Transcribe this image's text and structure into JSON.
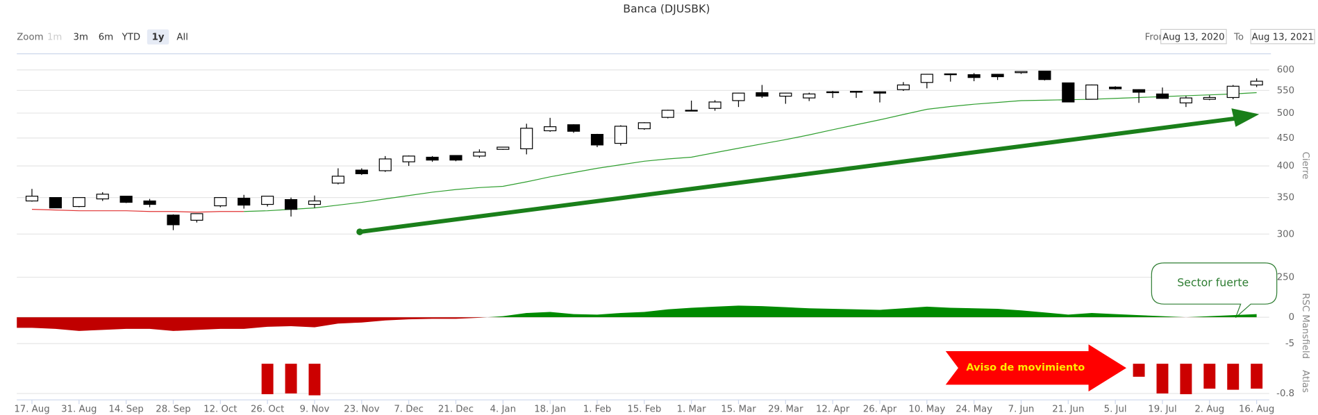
{
  "title": "Banca (DJUSBK)",
  "zoom": {
    "label": "Zoom",
    "buttons": [
      "1m",
      "3m",
      "6m",
      "YTD",
      "1y",
      "All"
    ],
    "selected": "1y",
    "disabled": [
      "1m"
    ]
  },
  "range": {
    "from_label": "From",
    "from": "Aug 13, 2020",
    "to_label": "To",
    "to": "Aug 13, 2021"
  },
  "annotations": {
    "sector": "Sector fuerte",
    "aviso": "Aviso de movimiento"
  },
  "chart_data": [
    {
      "type": "candlestick",
      "y_label": "Cierre",
      "log_scale": true,
      "grid": true,
      "categories": [
        "17. Aug",
        null,
        "31. Aug",
        null,
        "14. Sep",
        null,
        "28. Sep",
        null,
        "12. Oct",
        null,
        "26. Oct",
        null,
        "9. Nov",
        null,
        "23. Nov",
        null,
        "7. Dec",
        null,
        "21. Dec",
        null,
        "4. Jan",
        null,
        "18. Jan",
        null,
        "1. Feb",
        null,
        "15. Feb",
        null,
        "1. Mar",
        null,
        "15. Mar",
        null,
        "29. Mar",
        null,
        "12. Apr",
        null,
        "26. Apr",
        null,
        "10. May",
        null,
        "24. May",
        null,
        "7. Jun",
        null,
        "21. Jun",
        null,
        "5. Jul",
        null,
        "19. Jul",
        null,
        "2. Aug",
        null,
        "16. Aug"
      ],
      "open": [
        345,
        350,
        337,
        348,
        352,
        345,
        325,
        318,
        338,
        349,
        340,
        347,
        340,
        372,
        393,
        392,
        407,
        415,
        418,
        417,
        429,
        430,
        464,
        476,
        457,
        440,
        468,
        491,
        505,
        510,
        527,
        545,
        537,
        533,
        545,
        547,
        547,
        552,
        569,
        588,
        588,
        589,
        593,
        597,
        568,
        530,
        558,
        552,
        542,
        522,
        530,
        534,
        563
      ],
      "high": [
        363,
        350,
        350,
        358,
        352,
        348,
        326,
        327,
        350,
        354,
        352,
        350,
        353,
        396,
        396,
        417,
        418,
        417,
        418,
        429,
        433,
        478,
        490,
        477,
        458,
        475,
        481,
        507,
        527,
        528,
        545,
        563,
        545,
        545,
        549,
        549,
        548,
        570,
        590,
        591,
        592,
        590,
        596,
        597,
        568,
        564,
        560,
        553,
        557,
        537,
        539,
        563,
        579
      ],
      "low": [
        344,
        335,
        336,
        345,
        342,
        336,
        305,
        315,
        336,
        334,
        337,
        323,
        335,
        370,
        385,
        390,
        400,
        407,
        408,
        414,
        428,
        420,
        462,
        460,
        433,
        436,
        466,
        489,
        504,
        505,
        513,
        533,
        520,
        526,
        533,
        533,
        523,
        549,
        555,
        571,
        572,
        575,
        590,
        574,
        524,
        530,
        552,
        522,
        531,
        513,
        528,
        530,
        558
      ],
      "close": [
        352,
        335,
        350,
        355,
        343,
        340,
        312,
        327,
        350,
        339,
        352,
        333,
        345,
        383,
        387,
        412,
        417,
        410,
        410,
        424,
        433,
        469,
        472,
        463,
        437,
        473,
        480,
        506,
        506,
        524,
        544,
        537,
        544,
        542,
        547,
        548,
        544,
        563,
        589,
        590,
        581,
        583,
        596,
        576,
        524,
        563,
        554,
        546,
        532,
        533,
        534,
        560,
        572
      ],
      "up_color": "#ffffff",
      "down_color": "#000000",
      "series": [
        {
          "color": "#e03030",
          "values": [
            333,
            332,
            331,
            331,
            331,
            330,
            330,
            329,
            330,
            330,
            null,
            null,
            null,
            null,
            null,
            null,
            null,
            null,
            null,
            null,
            null,
            null,
            null,
            null,
            null,
            null,
            null,
            null,
            null,
            null,
            null,
            null,
            null,
            null,
            null,
            null,
            null,
            null,
            null,
            null,
            null,
            null,
            null,
            null,
            null,
            null,
            null,
            null,
            null,
            null,
            null,
            null,
            null
          ]
        },
        {
          "color": "#2e9e2e",
          "values": [
            null,
            null,
            null,
            null,
            null,
            null,
            null,
            null,
            null,
            330,
            331,
            333,
            335,
            339,
            343,
            348,
            353,
            358,
            362,
            365,
            367,
            374,
            382,
            389,
            396,
            402,
            408,
            412,
            415,
            423,
            431,
            439,
            447,
            456,
            466,
            476,
            486,
            497,
            508,
            514,
            519,
            523,
            527,
            528,
            529,
            530,
            532,
            534,
            536,
            538,
            540,
            542,
            545
          ]
        }
      ],
      "ylim": [
        250,
        640
      ],
      "yticks": [
        250,
        300,
        350,
        400,
        450,
        500,
        550,
        600
      ]
    },
    {
      "type": "area",
      "y_label": "RSC Mansfield",
      "grid": true,
      "positive_color": "#008a00",
      "negative_color": "#c00000",
      "values": [
        -2,
        -2.2,
        -2.6,
        -2.4,
        -2.2,
        -2.2,
        -2.6,
        -2.4,
        -2.2,
        -2.2,
        -1.8,
        -1.7,
        -1.9,
        -1.2,
        -1,
        -0.6,
        -0.4,
        -0.3,
        -0.3,
        -0.1,
        0.2,
        0.8,
        1,
        0.6,
        0.5,
        0.8,
        1,
        1.5,
        1.8,
        2,
        2.2,
        2.1,
        1.9,
        1.7,
        1.6,
        1.5,
        1.4,
        1.7,
        2,
        1.8,
        1.7,
        1.6,
        1.3,
        0.9,
        0.5,
        0.8,
        0.6,
        0.4,
        0.2,
        0,
        0.2,
        0.4,
        0.6
      ],
      "ylim": [
        -7.7,
        4.4
      ],
      "yticks": [
        -5,
        0
      ]
    },
    {
      "type": "bar",
      "y_label": "Atlas",
      "grid": true,
      "color": "#cc0000",
      "values": [
        null,
        null,
        null,
        null,
        null,
        null,
        null,
        null,
        null,
        null,
        -0.82,
        -0.8,
        -0.85,
        null,
        null,
        null,
        null,
        null,
        null,
        null,
        null,
        null,
        null,
        null,
        null,
        null,
        null,
        null,
        null,
        null,
        null,
        null,
        null,
        null,
        null,
        null,
        null,
        null,
        null,
        null,
        null,
        null,
        null,
        null,
        null,
        null,
        null,
        -0.35,
        -0.8,
        -0.82,
        -0.67,
        -0.7,
        -0.67
      ],
      "ylim": [
        -0.95,
        0
      ],
      "yticks": [
        -0.8
      ]
    }
  ]
}
